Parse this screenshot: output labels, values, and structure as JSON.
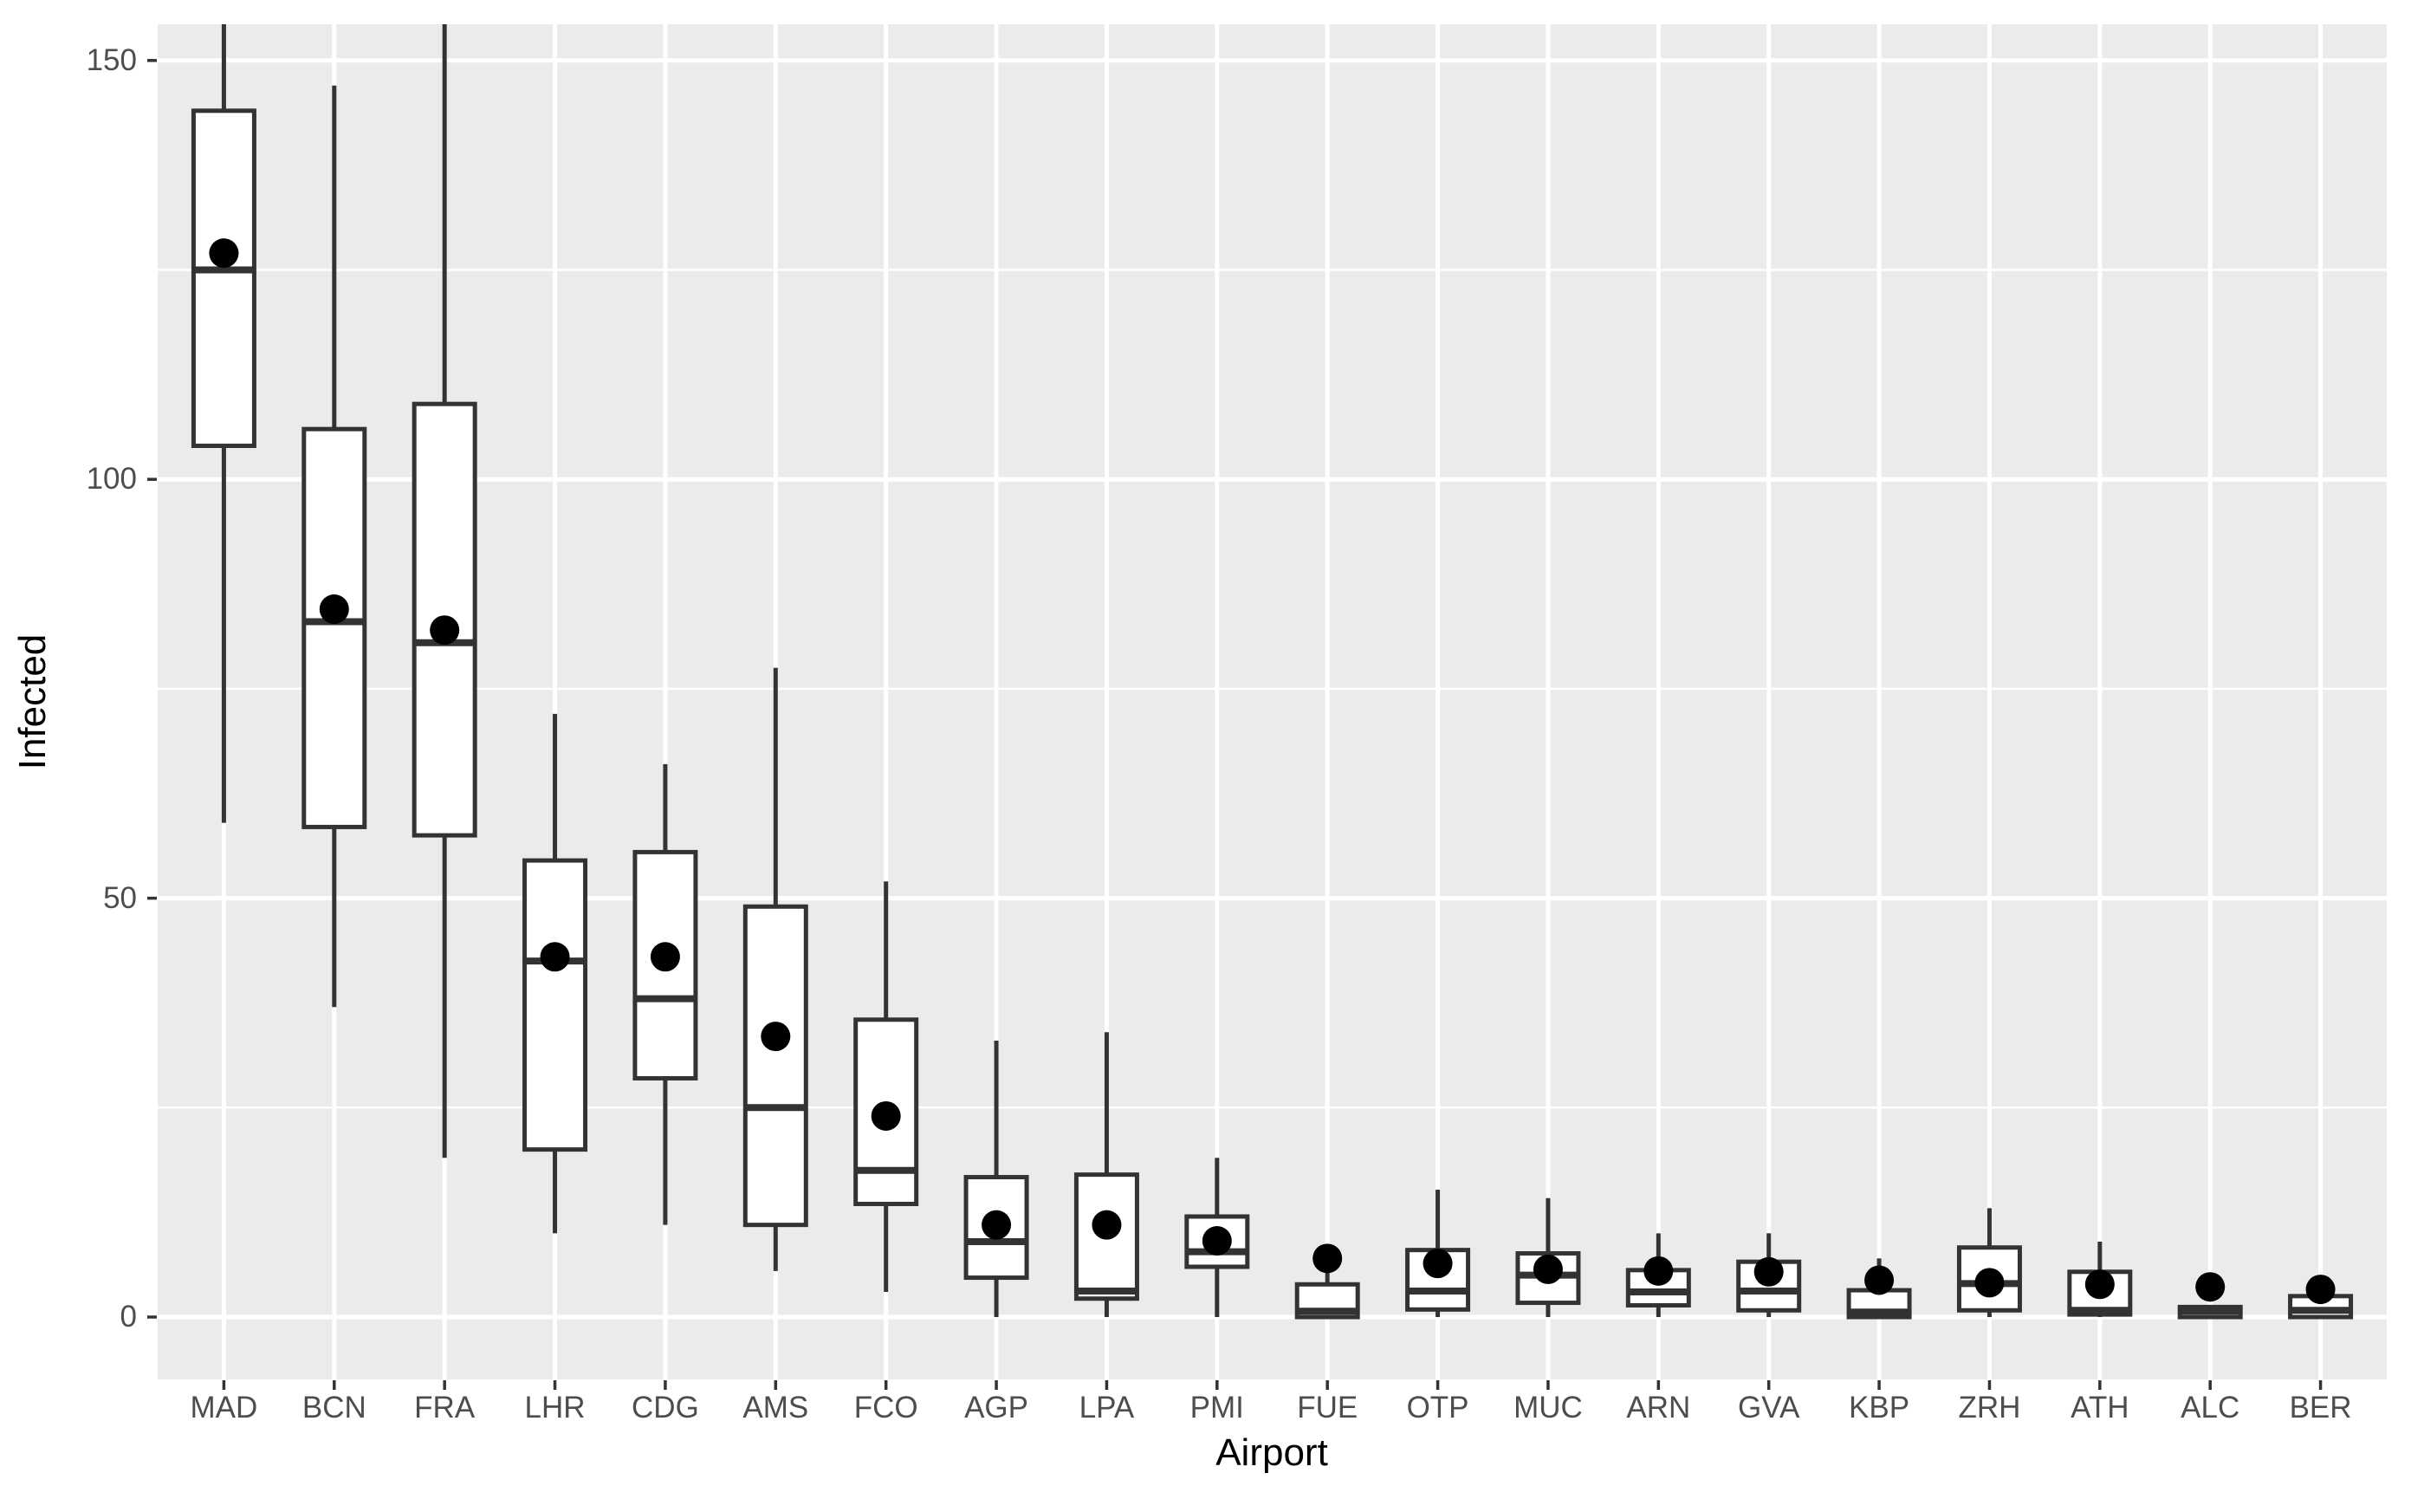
{
  "figure": {
    "background": "#FFFFFF"
  },
  "chart_data": {
    "type": "boxplot",
    "title": "",
    "xlabel": "Airport",
    "ylabel": "Infected",
    "legend": "none",
    "grid": "on",
    "panel_background": "#EBEBEB",
    "gridline_color": "#FFFFFF",
    "box_fill_color": "#FFFFFF",
    "box_stroke_color": "#333333",
    "mean_dot_color": "#000000",
    "tick_label_color": "#4D4D4D",
    "axis_title_color": "#000000",
    "y_axis": {
      "ticks": [
        0,
        50,
        100,
        150
      ],
      "minor_ticks": [
        25,
        75,
        125
      ],
      "range": [
        -7.5,
        154.3
      ]
    },
    "categories": [
      "MAD",
      "BCN",
      "FRA",
      "LHR",
      "CDG",
      "AMS",
      "FCO",
      "AGP",
      "LPA",
      "PMI",
      "FUE",
      "OTP",
      "MUC",
      "ARN",
      "GVA",
      "KBP",
      "ZRH",
      "ATH",
      "ALC",
      "BER"
    ],
    "series": [
      {
        "airport": "MAD",
        "whisker_low": 59,
        "q1": 104,
        "median": 125,
        "q3": 144,
        "whisker_high": 158,
        "mean": 127,
        "clipped_top": true
      },
      {
        "airport": "BCN",
        "whisker_low": 37,
        "q1": 58.5,
        "median": 83,
        "q3": 106,
        "whisker_high": 147,
        "mean": 84.5,
        "clipped_top": false
      },
      {
        "airport": "FRA",
        "whisker_low": 19,
        "q1": 57.5,
        "median": 80.5,
        "q3": 109,
        "whisker_high": 158,
        "mean": 82,
        "clipped_top": true
      },
      {
        "airport": "LHR",
        "whisker_low": 10,
        "q1": 20,
        "median": 42.5,
        "q3": 54.5,
        "whisker_high": 72,
        "mean": 43,
        "clipped_top": false
      },
      {
        "airport": "CDG",
        "whisker_low": 11,
        "q1": 28.5,
        "median": 38,
        "q3": 55.5,
        "whisker_high": 66,
        "mean": 43,
        "clipped_top": false
      },
      {
        "airport": "AMS",
        "whisker_low": 5.5,
        "q1": 11,
        "median": 25,
        "q3": 49,
        "whisker_high": 77.5,
        "mean": 33.5,
        "clipped_top": false
      },
      {
        "airport": "FCO",
        "whisker_low": 3,
        "q1": 13.5,
        "median": 17.5,
        "q3": 35.5,
        "whisker_high": 52,
        "mean": 24,
        "clipped_top": false
      },
      {
        "airport": "AGP",
        "whisker_low": 0,
        "q1": 4.7,
        "median": 9,
        "q3": 16.7,
        "whisker_high": 33,
        "mean": 11,
        "clipped_top": false
      },
      {
        "airport": "LPA",
        "whisker_low": 0,
        "q1": 2.2,
        "median": 3.1,
        "q3": 17,
        "whisker_high": 34,
        "mean": 11,
        "clipped_top": false
      },
      {
        "airport": "PMI",
        "whisker_low": 0,
        "q1": 6,
        "median": 7.8,
        "q3": 12,
        "whisker_high": 19,
        "mean": 9.1,
        "clipped_top": false
      },
      {
        "airport": "FUE",
        "whisker_low": 0,
        "q1": 0,
        "median": 0.7,
        "q3": 3.9,
        "whisker_high": 5.5,
        "mean": 7,
        "clipped_top": false
      },
      {
        "airport": "OTP",
        "whisker_low": 0,
        "q1": 0.9,
        "median": 3.1,
        "q3": 8,
        "whisker_high": 15.2,
        "mean": 6.4,
        "clipped_top": false
      },
      {
        "airport": "MUC",
        "whisker_low": 0,
        "q1": 1.7,
        "median": 5,
        "q3": 7.6,
        "whisker_high": 14.2,
        "mean": 5.7,
        "clipped_top": false
      },
      {
        "airport": "ARN",
        "whisker_low": 0,
        "q1": 1.4,
        "median": 3,
        "q3": 5.6,
        "whisker_high": 10,
        "mean": 5.5,
        "clipped_top": false
      },
      {
        "airport": "GVA",
        "whisker_low": 0,
        "q1": 0.8,
        "median": 3.1,
        "q3": 6.6,
        "whisker_high": 10,
        "mean": 5.4,
        "clipped_top": false
      },
      {
        "airport": "KBP",
        "whisker_low": 0,
        "q1": 0,
        "median": 0.6,
        "q3": 3.2,
        "whisker_high": 7,
        "mean": 4.4,
        "clipped_top": false
      },
      {
        "airport": "ZRH",
        "whisker_low": 0,
        "q1": 0.8,
        "median": 4,
        "q3": 8.3,
        "whisker_high": 13,
        "mean": 4.1,
        "clipped_top": false
      },
      {
        "airport": "ATH",
        "whisker_low": 0,
        "q1": 0.3,
        "median": 0.8,
        "q3": 5.4,
        "whisker_high": 9,
        "mean": 3.9,
        "clipped_top": false
      },
      {
        "airport": "ALC",
        "whisker_low": 0,
        "q1": 0,
        "median": 0.7,
        "q3": 1.2,
        "whisker_high": 1.2,
        "mean": 3.6,
        "clipped_top": false
      },
      {
        "airport": "BER",
        "whisker_low": 0,
        "q1": 0,
        "median": 0.8,
        "q3": 2.5,
        "whisker_high": 2.5,
        "mean": 3.3,
        "clipped_top": false
      }
    ]
  }
}
